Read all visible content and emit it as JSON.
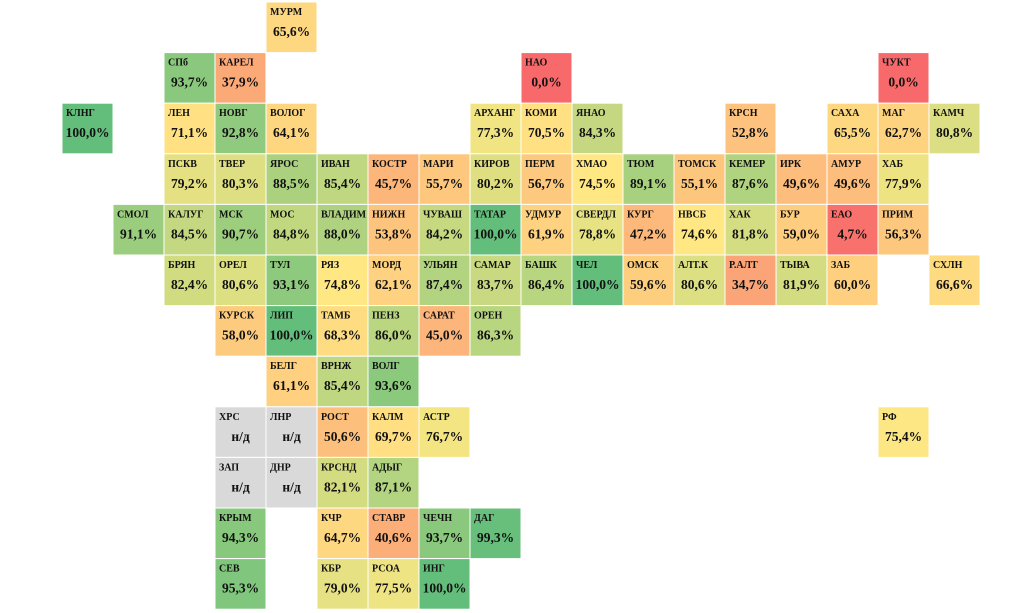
{
  "chart_data": {
    "type": "tilemap",
    "categories": [
      "МУРМ",
      "СПб",
      "КАРЕЛ",
      "НАО",
      "ЧУКТ",
      "КЛНГ",
      "ЛЕН",
      "НОВГ",
      "ВОЛОГ",
      "АРХАНГ",
      "КОМИ",
      "ЯНАО",
      "КРСН",
      "САХА",
      "МАГ",
      "КАМЧ",
      "ПСКВ",
      "ТВЕР",
      "ЯРОС",
      "ИВАН",
      "КОСТР",
      "МАРИ",
      "КИРОВ",
      "ПЕРМ",
      "ХМАО",
      "ТЮМ",
      "ТОМСК",
      "КЕМЕР",
      "ИРК",
      "АМУР",
      "ХАБ",
      "СМОЛ",
      "КАЛУГ",
      "МСК",
      "МОС",
      "ВЛАДИМ",
      "НИЖН",
      "ЧУВАШ",
      "ТАТАР",
      "УДМУР",
      "СВЕРДЛ",
      "КУРГ",
      "НВСБ",
      "ХАК",
      "БУР",
      "ЕАО",
      "ПРИМ",
      "БРЯН",
      "ОРЕЛ",
      "ТУЛ",
      "РЯЗ",
      "МОРД",
      "УЛЬЯН",
      "САМАР",
      "БАШК",
      "ЧЕЛ",
      "ОМСК",
      "АЛТ.К",
      "Р.АЛТ",
      "ТЫВА",
      "ЗАБ",
      "СХЛН",
      "КУРСК",
      "ЛИП",
      "ТАМБ",
      "ПЕНЗ",
      "САРАТ",
      "ОРЕН",
      "БЕЛГ",
      "ВРНЖ",
      "ВОЛГ",
      "ХРС",
      "ЛНР",
      "РОСТ",
      "КАЛМ",
      "АСТР",
      "РФ",
      "ЗАП",
      "ДНР",
      "КРСНД",
      "АДЫГ",
      "КРЫМ",
      "КЧР",
      "СТАВР",
      "ЧЕЧН",
      "ДАГ",
      "СЕВ",
      "КБР",
      "РСОА",
      "ИНГ"
    ],
    "values": [
      65.6,
      93.7,
      37.9,
      0.0,
      0.0,
      100.0,
      71.1,
      92.8,
      64.1,
      77.3,
      70.5,
      84.3,
      52.8,
      65.5,
      62.7,
      80.8,
      79.2,
      80.3,
      88.5,
      85.4,
      45.7,
      55.7,
      80.2,
      56.7,
      74.5,
      89.1,
      55.1,
      87.6,
      49.6,
      49.6,
      77.9,
      91.1,
      84.5,
      90.7,
      84.8,
      88.0,
      53.8,
      84.2,
      100.0,
      61.9,
      78.8,
      47.2,
      74.6,
      81.8,
      59.0,
      4.7,
      56.3,
      82.4,
      80.6,
      93.1,
      74.8,
      62.1,
      87.4,
      83.7,
      86.4,
      100.0,
      59.6,
      80.6,
      34.7,
      81.9,
      60.0,
      66.6,
      58.0,
      100.0,
      68.3,
      86.0,
      45.0,
      86.3,
      61.1,
      85.4,
      93.6,
      null,
      null,
      50.6,
      69.7,
      76.7,
      75.4,
      null,
      null,
      82.1,
      87.1,
      94.3,
      64.7,
      40.6,
      93.7,
      99.3,
      95.3,
      79.0,
      77.5,
      100.0
    ],
    "value_labels": [
      "65,6%",
      "93,7%",
      "37,9%",
      "0,0%",
      "0,0%",
      "100,0%",
      "71,1%",
      "92,8%",
      "64,1%",
      "77,3%",
      "70,5%",
      "84,3%",
      "52,8%",
      "65,5%",
      "62,7%",
      "80,8%",
      "79,2%",
      "80,3%",
      "88,5%",
      "85,4%",
      "45,7%",
      "55,7%",
      "80,2%",
      "56,7%",
      "74,5%",
      "89,1%",
      "55,1%",
      "87,6%",
      "49,6%",
      "49,6%",
      "77,9%",
      "91,1%",
      "84,5%",
      "90,7%",
      "84,8%",
      "88,0%",
      "53,8%",
      "84,2%",
      "100,0%",
      "61,9%",
      "78,8%",
      "47,2%",
      "74,6%",
      "81,8%",
      "59,0%",
      "4,7%",
      "56,3%",
      "82,4%",
      "80,6%",
      "93,1%",
      "74,8%",
      "62,1%",
      "87,4%",
      "83,7%",
      "86,4%",
      "100,0%",
      "59,6%",
      "80,6%",
      "34,7%",
      "81,9%",
      "60,0%",
      "66,6%",
      "58,0%",
      "100,0%",
      "68,3%",
      "86,0%",
      "45,0%",
      "86,3%",
      "61,1%",
      "85,4%",
      "93,6%",
      "н/д",
      "н/д",
      "50,6%",
      "69,7%",
      "76,7%",
      "75,4%",
      "н/д",
      "н/д",
      "82,1%",
      "87,1%",
      "94,3%",
      "64,7%",
      "40,6%",
      "93,7%",
      "99,3%",
      "95,3%",
      "79,0%",
      "77,5%",
      "100,0%"
    ],
    "color_scale": [
      {
        "value": 0,
        "color": "#f8696b"
      },
      {
        "value": 75,
        "color": "#ffe884"
      },
      {
        "value": 100,
        "color": "#63be7b"
      }
    ],
    "missing_color": "#d9d9d9"
  }
}
